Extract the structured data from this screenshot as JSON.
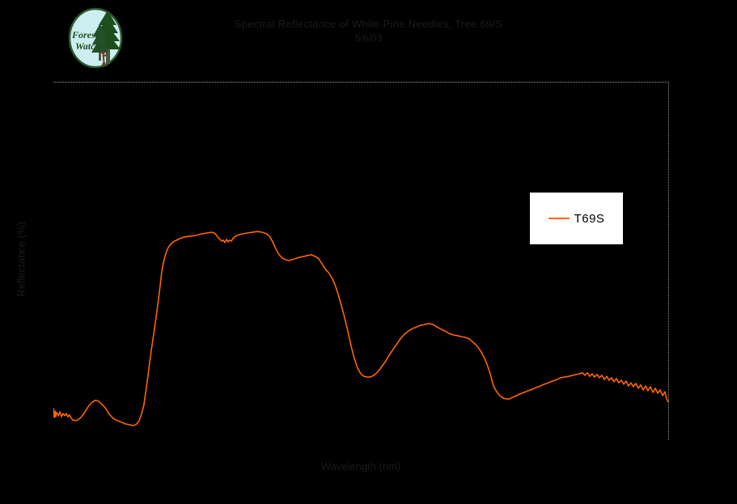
{
  "page": {
    "background": "#000000"
  },
  "logo": {
    "alt": "Forest Watch logo",
    "word1": "Forest",
    "word2": "Watch",
    "circle_fill": "#cdeef1",
    "ring_color": "#2a5a2a",
    "text_color": "#1d4f1d",
    "tree_color": "#1e4d1e",
    "trunk_color": "#4a5a38",
    "person_color": "#6e3a2e"
  },
  "header": {
    "title_line1": "Spectral Reflectance of White Pine Needles, Tree 69/S",
    "title_line2": "5/6/03",
    "text_color": "#1b1b1b"
  },
  "axes": {
    "x_label": "Wavelength (nm)",
    "y_label": "Reflectance (%)",
    "border_color": "#9a9a9a"
  },
  "legend": {
    "label": "T69S",
    "line_color": "#ff6600",
    "background": "#ffffff",
    "position": "right-center"
  },
  "chart_data": {
    "type": "line",
    "title": "Spectral Reflectance of White Pine Needles, Tree 69/S",
    "subtitle": "5/6/03",
    "xlabel": "Wavelength (nm)",
    "ylabel": "Reflectance (%)",
    "xlim": [
      400,
      2500
    ],
    "ylim": [
      0,
      100
    ],
    "grid": false,
    "background": "#000000",
    "legend_position": "right-center",
    "series": [
      {
        "name": "T69S",
        "color": "#ff6600",
        "points": [
          [
            400,
            8.8
          ],
          [
            403,
            6.1
          ],
          [
            406,
            7.9
          ],
          [
            408,
            6.3
          ],
          [
            411,
            7.5
          ],
          [
            417,
            6.6
          ],
          [
            422,
            7.7
          ],
          [
            428,
            6.3
          ],
          [
            433,
            7.2
          ],
          [
            439,
            6.6
          ],
          [
            444,
            7.2
          ],
          [
            450,
            6.3
          ],
          [
            455,
            6.8
          ],
          [
            461,
            5.9
          ],
          [
            466,
            5.4
          ],
          [
            475,
            5.2
          ],
          [
            483,
            5.4
          ],
          [
            494,
            6.1
          ],
          [
            502,
            7.0
          ],
          [
            511,
            8.1
          ],
          [
            522,
            9.5
          ],
          [
            533,
            10.4
          ],
          [
            544,
            10.9
          ],
          [
            555,
            10.6
          ],
          [
            566,
            9.7
          ],
          [
            577,
            8.8
          ],
          [
            591,
            7.0
          ],
          [
            604,
            5.9
          ],
          [
            618,
            5.2
          ],
          [
            632,
            4.8
          ],
          [
            646,
            4.3
          ],
          [
            660,
            4.1
          ],
          [
            671,
            3.8
          ],
          [
            682,
            4.1
          ],
          [
            693,
            5.2
          ],
          [
            701,
            7.0
          ],
          [
            709,
            9.5
          ],
          [
            718,
            14.7
          ],
          [
            726,
            19.7
          ],
          [
            734,
            24.7
          ],
          [
            743,
            29.6
          ],
          [
            751,
            34.2
          ],
          [
            759,
            39.1
          ],
          [
            765,
            43.2
          ],
          [
            770,
            46.8
          ],
          [
            776,
            49.5
          ],
          [
            784,
            52.0
          ],
          [
            792,
            53.6
          ],
          [
            803,
            54.8
          ],
          [
            814,
            55.4
          ],
          [
            831,
            56.1
          ],
          [
            848,
            56.6
          ],
          [
            867,
            56.8
          ],
          [
            886,
            57.0
          ],
          [
            908,
            57.5
          ],
          [
            925,
            57.7
          ],
          [
            942,
            57.9
          ],
          [
            953,
            57.5
          ],
          [
            961,
            56.6
          ],
          [
            969,
            55.9
          ],
          [
            975,
            55.4
          ],
          [
            980,
            55.7
          ],
          [
            986,
            55.0
          ],
          [
            991,
            55.9
          ],
          [
            997,
            55.2
          ],
          [
            1002,
            55.7
          ],
          [
            1008,
            55.4
          ],
          [
            1013,
            56.1
          ],
          [
            1022,
            56.8
          ],
          [
            1033,
            57.2
          ],
          [
            1047,
            57.5
          ],
          [
            1063,
            57.7
          ],
          [
            1080,
            57.9
          ],
          [
            1096,
            58.1
          ],
          [
            1113,
            57.9
          ],
          [
            1127,
            57.5
          ],
          [
            1138,
            56.8
          ],
          [
            1149,
            55.2
          ],
          [
            1160,
            53.2
          ],
          [
            1171,
            51.6
          ],
          [
            1182,
            50.7
          ],
          [
            1193,
            50.2
          ],
          [
            1204,
            50.0
          ],
          [
            1215,
            50.2
          ],
          [
            1226,
            50.5
          ],
          [
            1240,
            50.9
          ],
          [
            1254,
            51.1
          ],
          [
            1268,
            51.4
          ],
          [
            1281,
            51.6
          ],
          [
            1295,
            51.1
          ],
          [
            1306,
            50.5
          ],
          [
            1317,
            49.1
          ],
          [
            1328,
            47.7
          ],
          [
            1340,
            46.6
          ],
          [
            1351,
            45.2
          ],
          [
            1362,
            43.2
          ],
          [
            1373,
            40.5
          ],
          [
            1384,
            37.3
          ],
          [
            1395,
            33.9
          ],
          [
            1406,
            30.1
          ],
          [
            1417,
            26.0
          ],
          [
            1428,
            22.6
          ],
          [
            1439,
            19.9
          ],
          [
            1450,
            18.3
          ],
          [
            1461,
            17.6
          ],
          [
            1472,
            17.4
          ],
          [
            1483,
            17.4
          ],
          [
            1494,
            17.9
          ],
          [
            1505,
            18.6
          ],
          [
            1516,
            19.7
          ],
          [
            1530,
            21.3
          ],
          [
            1544,
            23.1
          ],
          [
            1558,
            24.9
          ],
          [
            1572,
            26.5
          ],
          [
            1585,
            28.1
          ],
          [
            1599,
            29.4
          ],
          [
            1613,
            30.3
          ],
          [
            1627,
            31.0
          ],
          [
            1641,
            31.4
          ],
          [
            1655,
            31.9
          ],
          [
            1668,
            32.1
          ],
          [
            1682,
            32.4
          ],
          [
            1696,
            32.1
          ],
          [
            1710,
            31.4
          ],
          [
            1724,
            30.8
          ],
          [
            1737,
            30.3
          ],
          [
            1751,
            29.6
          ],
          [
            1765,
            29.2
          ],
          [
            1779,
            29.0
          ],
          [
            1793,
            28.7
          ],
          [
            1806,
            28.5
          ],
          [
            1820,
            28.1
          ],
          [
            1834,
            27.1
          ],
          [
            1848,
            26.0
          ],
          [
            1859,
            24.7
          ],
          [
            1870,
            23.1
          ],
          [
            1881,
            21.0
          ],
          [
            1892,
            18.3
          ],
          [
            1903,
            14.9
          ],
          [
            1914,
            13.3
          ],
          [
            1925,
            12.2
          ],
          [
            1936,
            11.5
          ],
          [
            1947,
            11.3
          ],
          [
            1958,
            11.3
          ],
          [
            1970,
            11.8
          ],
          [
            1981,
            12.2
          ],
          [
            1994,
            12.7
          ],
          [
            2008,
            13.1
          ],
          [
            2022,
            13.6
          ],
          [
            2036,
            14.0
          ],
          [
            2050,
            14.5
          ],
          [
            2063,
            14.9
          ],
          [
            2077,
            15.4
          ],
          [
            2091,
            15.8
          ],
          [
            2105,
            16.3
          ],
          [
            2119,
            16.7
          ],
          [
            2132,
            17.2
          ],
          [
            2146,
            17.4
          ],
          [
            2160,
            17.6
          ],
          [
            2174,
            17.9
          ],
          [
            2185,
            18.1
          ],
          [
            2196,
            18.3
          ],
          [
            2207,
            18.6
          ],
          [
            2215,
            17.9
          ],
          [
            2224,
            18.6
          ],
          [
            2232,
            17.6
          ],
          [
            2240,
            18.3
          ],
          [
            2248,
            17.4
          ],
          [
            2257,
            18.1
          ],
          [
            2265,
            17.2
          ],
          [
            2273,
            17.9
          ],
          [
            2282,
            16.7
          ],
          [
            2290,
            17.6
          ],
          [
            2298,
            16.5
          ],
          [
            2306,
            17.2
          ],
          [
            2315,
            16.1
          ],
          [
            2323,
            17.0
          ],
          [
            2331,
            15.8
          ],
          [
            2340,
            16.5
          ],
          [
            2348,
            15.4
          ],
          [
            2356,
            16.3
          ],
          [
            2364,
            14.9
          ],
          [
            2373,
            15.8
          ],
          [
            2381,
            14.7
          ],
          [
            2389,
            15.6
          ],
          [
            2398,
            14.3
          ],
          [
            2406,
            15.2
          ],
          [
            2414,
            13.8
          ],
          [
            2423,
            14.9
          ],
          [
            2431,
            13.6
          ],
          [
            2439,
            14.7
          ],
          [
            2448,
            13.1
          ],
          [
            2456,
            14.3
          ],
          [
            2464,
            12.9
          ],
          [
            2472,
            13.8
          ],
          [
            2481,
            12.2
          ],
          [
            2489,
            13.3
          ],
          [
            2494,
            11.5
          ],
          [
            2500,
            10.4
          ]
        ]
      }
    ]
  }
}
